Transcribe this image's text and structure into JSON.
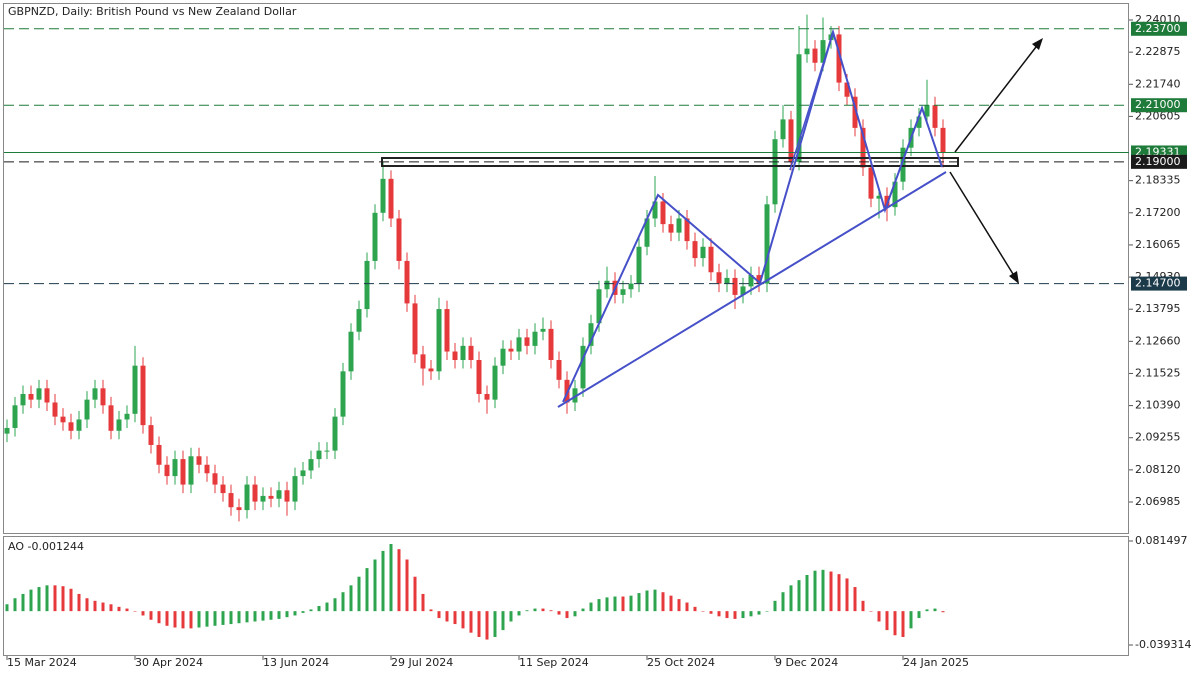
{
  "chart_data": [
    {
      "type": "candlestick",
      "title": "GBPNZD, Daily:  British Pound vs New Zealand Dollar",
      "up_color": "#2ea44f",
      "down_color": "#e5393b",
      "ylim": [
        2.0589,
        2.2454
      ],
      "yticks": [
        {
          "value": 2.2401,
          "label": "2.24010"
        },
        2.22875,
        {
          "value": 2.2174,
          "label": "2.21740"
        },
        2.20605,
        2.18335,
        {
          "value": 2.172,
          "label": "2.17200"
        },
        2.16065,
        {
          "value": 2.1493,
          "label": "2.14930"
        },
        2.13795,
        {
          "value": 2.1266,
          "label": "2.12660"
        },
        2.11525,
        {
          "value": 2.1039,
          "label": "2.10390"
        },
        2.09255,
        {
          "value": 2.0812,
          "label": "2.08120"
        },
        2.06985
      ],
      "xticks": [
        {
          "value": 0,
          "label": "15 Mar 2024"
        },
        {
          "value": 16,
          "label": "30 Apr 2024"
        },
        {
          "value": 32,
          "label": "13 Jun 2024"
        },
        {
          "value": 48,
          "label": "29 Jul 2024"
        },
        {
          "value": 64,
          "label": "11 Sep 2024"
        },
        {
          "value": 80,
          "label": "25 Oct 2024"
        },
        {
          "value": 96,
          "label": "9 Dec 2024"
        },
        {
          "value": 112,
          "label": "24 Jan 2025"
        }
      ],
      "levels": [
        {
          "value": 2.237,
          "label": "2.23700",
          "color": "#1e7b3a"
        },
        {
          "value": 2.21,
          "label": "2.21000",
          "color": "#1e7b3a"
        },
        {
          "value": 2.19,
          "label": "2.19000",
          "color": "#1b1b1b"
        },
        {
          "value": 2.147,
          "label": "2.14700",
          "color": "#1b3a4a"
        }
      ],
      "current": {
        "value": 2.19331,
        "label": "2.19331",
        "color": "#1e7b3a"
      },
      "ohlc": [
        [
          2.094,
          2.099,
          2.091,
          2.096
        ],
        [
          2.096,
          2.107,
          2.093,
          2.104
        ],
        [
          2.104,
          2.111,
          2.101,
          2.108
        ],
        [
          2.108,
          2.111,
          2.103,
          2.106
        ],
        [
          2.106,
          2.113,
          2.103,
          2.11
        ],
        [
          2.11,
          2.113,
          2.102,
          2.105
        ],
        [
          2.105,
          2.108,
          2.097,
          2.1
        ],
        [
          2.1,
          2.103,
          2.095,
          2.098
        ],
        [
          2.098,
          2.101,
          2.092,
          2.095
        ],
        [
          2.095,
          2.102,
          2.092,
          2.099
        ],
        [
          2.099,
          2.109,
          2.096,
          2.106
        ],
        [
          2.106,
          2.113,
          2.103,
          2.11
        ],
        [
          2.11,
          2.113,
          2.101,
          2.104
        ],
        [
          2.104,
          2.107,
          2.092,
          2.095
        ],
        [
          2.095,
          2.102,
          2.092,
          2.099
        ],
        [
          2.099,
          2.104,
          2.096,
          2.101
        ],
        [
          2.101,
          2.125,
          2.098,
          2.118
        ],
        [
          2.118,
          2.121,
          2.094,
          2.097
        ],
        [
          2.097,
          2.1,
          2.087,
          2.09
        ],
        [
          2.09,
          2.093,
          2.08,
          2.083
        ],
        [
          2.083,
          2.086,
          2.076,
          2.079
        ],
        [
          2.079,
          2.088,
          2.076,
          2.085
        ],
        [
          2.085,
          2.088,
          2.073,
          2.076
        ],
        [
          2.076,
          2.089,
          2.073,
          2.086
        ],
        [
          2.086,
          2.089,
          2.08,
          2.083
        ],
        [
          2.083,
          2.086,
          2.077,
          2.08
        ],
        [
          2.08,
          2.083,
          2.073,
          2.076
        ],
        [
          2.076,
          2.079,
          2.07,
          2.073
        ],
        [
          2.073,
          2.076,
          2.065,
          2.068
        ],
        [
          2.068,
          2.071,
          2.063,
          2.067
        ],
        [
          2.067,
          2.079,
          2.064,
          2.076
        ],
        [
          2.076,
          2.079,
          2.067,
          2.07
        ],
        [
          2.07,
          2.075,
          2.067,
          2.072
        ],
        [
          2.072,
          2.075,
          2.068,
          2.071
        ],
        [
          2.071,
          2.077,
          2.068,
          2.074
        ],
        [
          2.074,
          2.077,
          2.065,
          2.07
        ],
        [
          2.07,
          2.082,
          2.067,
          2.079
        ],
        [
          2.079,
          2.084,
          2.076,
          2.081
        ],
        [
          2.081,
          2.088,
          2.078,
          2.085
        ],
        [
          2.085,
          2.091,
          2.082,
          2.088
        ],
        [
          2.088,
          2.091,
          2.085,
          2.088
        ],
        [
          2.088,
          2.103,
          2.085,
          2.1
        ],
        [
          2.1,
          2.119,
          2.097,
          2.116
        ],
        [
          2.116,
          2.133,
          2.113,
          2.13
        ],
        [
          2.13,
          2.141,
          2.127,
          2.138
        ],
        [
          2.138,
          2.158,
          2.135,
          2.155
        ],
        [
          2.155,
          2.175,
          2.152,
          2.172
        ],
        [
          2.172,
          2.19,
          2.169,
          2.184
        ],
        [
          2.184,
          2.187,
          2.167,
          2.17
        ],
        [
          2.17,
          2.173,
          2.152,
          2.155
        ],
        [
          2.155,
          2.158,
          2.137,
          2.14
        ],
        [
          2.14,
          2.143,
          2.119,
          2.122
        ],
        [
          2.122,
          2.125,
          2.111,
          2.117
        ],
        [
          2.117,
          2.12,
          2.113,
          2.116
        ],
        [
          2.116,
          2.142,
          2.113,
          2.138
        ],
        [
          2.138,
          2.141,
          2.12,
          2.123
        ],
        [
          2.123,
          2.126,
          2.117,
          2.12
        ],
        [
          2.12,
          2.128,
          2.117,
          2.125
        ],
        [
          2.125,
          2.128,
          2.117,
          2.12
        ],
        [
          2.12,
          2.123,
          2.105,
          2.108
        ],
        [
          2.108,
          2.111,
          2.101,
          2.106
        ],
        [
          2.106,
          2.121,
          2.103,
          2.118
        ],
        [
          2.118,
          2.127,
          2.115,
          2.124
        ],
        [
          2.124,
          2.127,
          2.12,
          2.123
        ],
        [
          2.123,
          2.131,
          2.12,
          2.128
        ],
        [
          2.128,
          2.131,
          2.122,
          2.125
        ],
        [
          2.125,
          2.133,
          2.122,
          2.13
        ],
        [
          2.13,
          2.135,
          2.127,
          2.131
        ],
        [
          2.131,
          2.134,
          2.117,
          2.12
        ],
        [
          2.12,
          2.123,
          2.11,
          2.113
        ],
        [
          2.113,
          2.116,
          2.101,
          2.105
        ],
        [
          2.105,
          2.113,
          2.102,
          2.11
        ],
        [
          2.11,
          2.128,
          2.107,
          2.125
        ],
        [
          2.125,
          2.136,
          2.122,
          2.133
        ],
        [
          2.133,
          2.148,
          2.13,
          2.145
        ],
        [
          2.145,
          2.153,
          2.142,
          2.148
        ],
        [
          2.148,
          2.151,
          2.14,
          2.143
        ],
        [
          2.143,
          2.148,
          2.14,
          2.145
        ],
        [
          2.145,
          2.15,
          2.142,
          2.147
        ],
        [
          2.147,
          2.163,
          2.144,
          2.16
        ],
        [
          2.16,
          2.173,
          2.157,
          2.17
        ],
        [
          2.17,
          2.185,
          2.167,
          2.176
        ],
        [
          2.176,
          2.179,
          2.165,
          2.168
        ],
        [
          2.168,
          2.171,
          2.162,
          2.165
        ],
        [
          2.165,
          2.173,
          2.162,
          2.17
        ],
        [
          2.17,
          2.173,
          2.159,
          2.162
        ],
        [
          2.162,
          2.165,
          2.153,
          2.156
        ],
        [
          2.156,
          2.163,
          2.153,
          2.16
        ],
        [
          2.16,
          2.163,
          2.148,
          2.151
        ],
        [
          2.151,
          2.154,
          2.144,
          2.147
        ],
        [
          2.147,
          2.152,
          2.144,
          2.149
        ],
        [
          2.149,
          2.152,
          2.138,
          2.143
        ],
        [
          2.143,
          2.149,
          2.14,
          2.146
        ],
        [
          2.146,
          2.153,
          2.143,
          2.15
        ],
        [
          2.15,
          2.153,
          2.144,
          2.147
        ],
        [
          2.147,
          2.178,
          2.144,
          2.175
        ],
        [
          2.175,
          2.201,
          2.172,
          2.198
        ],
        [
          2.198,
          2.21,
          2.195,
          2.205
        ],
        [
          2.205,
          2.208,
          2.187,
          2.19
        ],
        [
          2.19,
          2.238,
          2.187,
          2.228
        ],
        [
          2.228,
          2.242,
          2.225,
          2.23
        ],
        [
          2.23,
          2.233,
          2.222,
          2.225
        ],
        [
          2.225,
          2.241,
          2.222,
          2.233
        ],
        [
          2.233,
          2.238,
          2.23,
          2.235
        ],
        [
          2.235,
          2.238,
          2.215,
          2.218
        ],
        [
          2.218,
          2.221,
          2.21,
          2.213
        ],
        [
          2.213,
          2.216,
          2.199,
          2.202
        ],
        [
          2.202,
          2.205,
          2.185,
          2.188
        ],
        [
          2.188,
          2.191,
          2.174,
          2.177
        ],
        [
          2.177,
          2.181,
          2.17,
          2.178
        ],
        [
          2.178,
          2.181,
          2.169,
          2.174
        ],
        [
          2.174,
          2.186,
          2.171,
          2.183
        ],
        [
          2.183,
          2.198,
          2.18,
          2.195
        ],
        [
          2.195,
          2.205,
          2.192,
          2.202
        ],
        [
          2.202,
          2.209,
          2.199,
          2.206
        ],
        [
          2.206,
          2.219,
          2.203,
          2.21
        ],
        [
          2.21,
          2.213,
          2.199,
          2.202
        ],
        [
          2.202,
          2.205,
          2.188,
          2.19331
        ]
      ]
    },
    {
      "type": "histogram-oscillator",
      "title": "AO -0.001244",
      "up_color": "#2ea44f",
      "down_color": "#e5393b",
      "ylim": [
        -0.05093,
        0.08614
      ],
      "yticks": [
        0.081497,
        -0.039314
      ],
      "values": [
        0.008,
        0.015,
        0.02,
        0.025,
        0.028,
        0.03,
        0.03,
        0.029,
        0.026,
        0.02,
        0.015,
        0.012,
        0.01,
        0.008,
        0.005,
        0.003,
        0.0,
        -0.005,
        -0.01,
        -0.014,
        -0.017,
        -0.019,
        -0.02,
        -0.02,
        -0.019,
        -0.018,
        -0.017,
        -0.016,
        -0.015,
        -0.014,
        -0.013,
        -0.012,
        -0.011,
        -0.01,
        -0.009,
        -0.007,
        -0.005,
        -0.002,
        0.002,
        0.006,
        0.01,
        0.015,
        0.022,
        0.03,
        0.04,
        0.05,
        0.06,
        0.07,
        0.078,
        0.072,
        0.06,
        0.04,
        0.02,
        0.002,
        -0.008,
        -0.012,
        -0.015,
        -0.02,
        -0.025,
        -0.03,
        -0.033,
        -0.03,
        -0.022,
        -0.012,
        -0.005,
        0.001,
        0.003,
        0.003,
        0.001,
        -0.004,
        -0.008,
        -0.006,
        0.003,
        0.01,
        0.014,
        0.016,
        0.017,
        0.017,
        0.018,
        0.021,
        0.024,
        0.025,
        0.022,
        0.018,
        0.014,
        0.01,
        0.005,
        0.0,
        -0.003,
        -0.006,
        -0.008,
        -0.009,
        -0.008,
        -0.006,
        -0.004,
        0.0,
        0.012,
        0.022,
        0.03,
        0.036,
        0.042,
        0.047,
        0.048,
        0.046,
        0.043,
        0.038,
        0.028,
        0.012,
        0.0,
        -0.012,
        -0.022,
        -0.028,
        -0.03,
        -0.02,
        -0.008,
        0.002,
        0.003,
        -0.001244
      ]
    }
  ]
}
